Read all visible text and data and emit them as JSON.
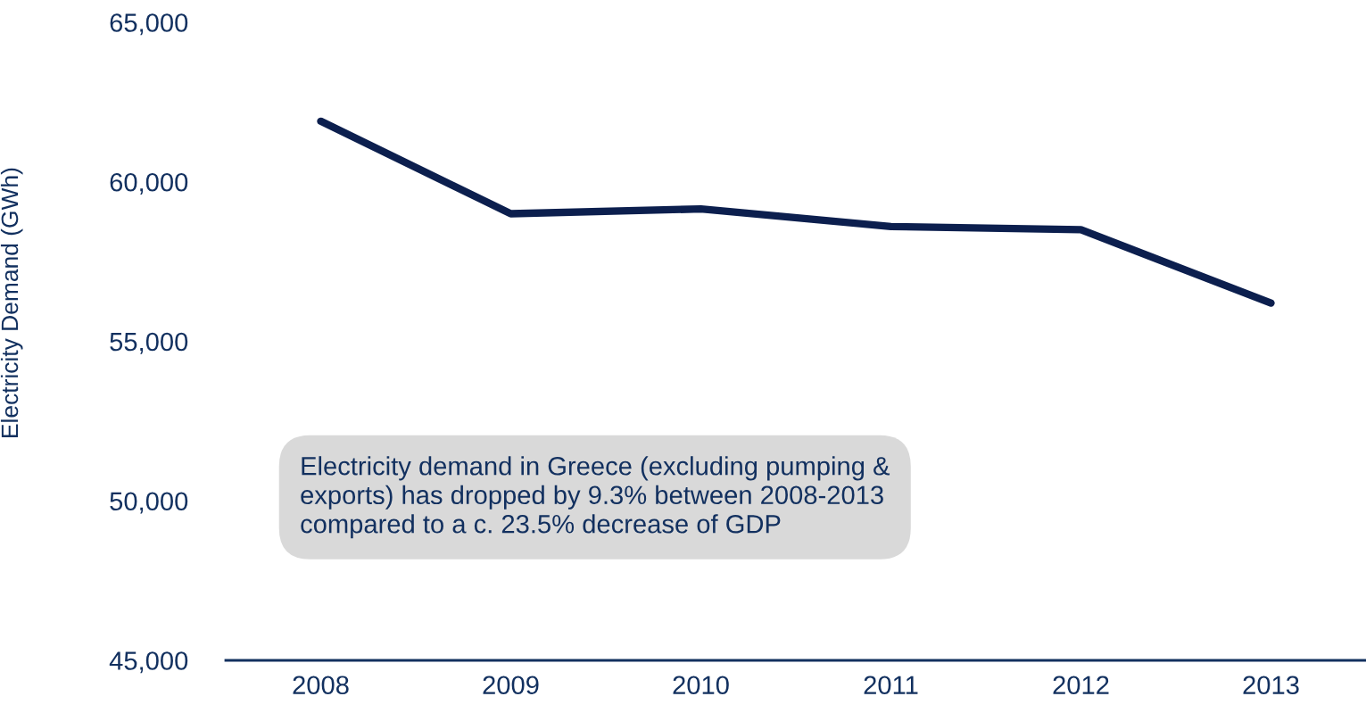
{
  "chart_data": {
    "type": "line",
    "ylabel": "Electricity Demand (GWh)",
    "categories": [
      "2008",
      "2009",
      "2010",
      "2011",
      "2012",
      "2013"
    ],
    "series": [
      {
        "color": "#0c1f4e",
        "values": [
          61900,
          59000,
          59150,
          58600,
          58500,
          56200
        ]
      }
    ],
    "ylim": [
      45000,
      65000
    ],
    "yticks": [
      {
        "value": 45000,
        "label": "45,000"
      },
      {
        "value": 50000,
        "label": "50,000"
      },
      {
        "value": 55000,
        "label": "55,000"
      },
      {
        "value": 60000,
        "label": "60,000"
      },
      {
        "value": 65000,
        "label": "65,000"
      }
    ],
    "grid": false,
    "legend": false,
    "marker": "none",
    "line_style": "solid",
    "annotations": [
      "Electricity demand in Greece (excluding pumping &\nexports) has dropped by 9.3% between 2008-2013\ncompared to a c. 23.5% decrease of GDP"
    ]
  }
}
